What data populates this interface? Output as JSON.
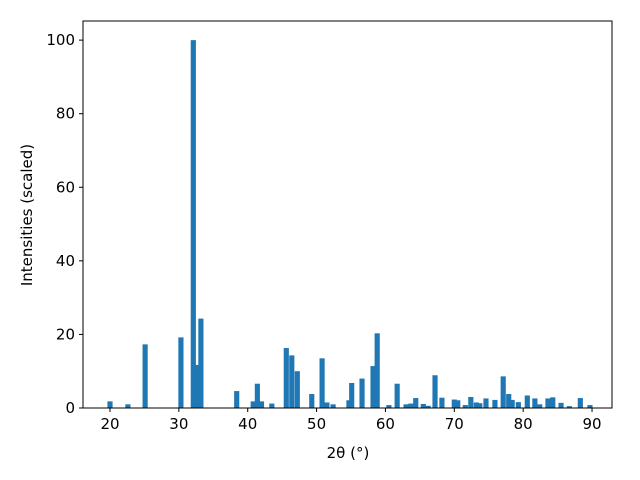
{
  "chart_data": {
    "type": "bar",
    "x_label": "2θ (°)",
    "y_label": "Intensities (scaled)",
    "x": [
      20.0,
      22.6,
      25.1,
      30.3,
      32.1,
      32.6,
      33.2,
      38.4,
      40.8,
      41.4,
      42.0,
      43.5,
      45.6,
      46.4,
      47.2,
      49.3,
      50.8,
      51.5,
      52.4,
      54.7,
      55.1,
      56.6,
      58.2,
      58.8,
      60.5,
      61.7,
      63.0,
      63.7,
      64.4,
      65.5,
      66.2,
      67.2,
      68.2,
      70.0,
      70.5,
      71.6,
      72.4,
      73.2,
      73.7,
      74.6,
      75.9,
      77.1,
      77.9,
      78.4,
      79.3,
      80.6,
      81.7,
      82.4,
      83.6,
      84.3,
      85.5,
      86.7,
      88.3,
      89.7
    ],
    "values": [
      1.8,
      1.0,
      17.3,
      19.2,
      100,
      11.7,
      24.3,
      4.6,
      1.8,
      6.6,
      1.8,
      1.2,
      16.3,
      14.3,
      10.0,
      3.8,
      13.5,
      1.5,
      1.0,
      2.1,
      6.8,
      8.0,
      11.4,
      20.3,
      0.8,
      6.6,
      1.0,
      1.2,
      2.7,
      1.1,
      0.6,
      8.9,
      2.8,
      2.3,
      2.1,
      0.8,
      3.0,
      1.5,
      1.3,
      2.6,
      2.2,
      8.6,
      3.8,
      2.2,
      1.6,
      3.4,
      2.6,
      1.0,
      2.6,
      2.9,
      1.4,
      0.5,
      2.7,
      0.8
    ],
    "color": "#1f77b4",
    "xlim": [
      16.08,
      92.9
    ],
    "xticks": [
      20,
      30,
      40,
      50,
      60,
      70,
      80,
      90
    ],
    "ylim": [
      0,
      105.2
    ],
    "yticks": [
      0,
      20,
      40,
      60,
      80,
      100
    ],
    "grid": false
  }
}
